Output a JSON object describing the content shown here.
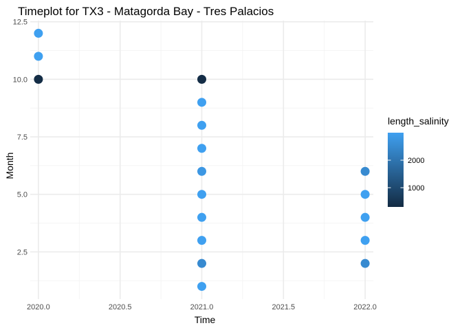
{
  "chart_data": {
    "type": "scatter",
    "title": "Timeplot for TX3 - Matagorda Bay - Tres Palacios",
    "xlabel": "Time",
    "ylabel": "Month",
    "xlim": [
      2019.95,
      2022.05
    ],
    "ylim": [
      0.45,
      12.55
    ],
    "x_ticks": [
      2020.0,
      2020.5,
      2021.0,
      2021.5,
      2022.0
    ],
    "x_tick_labels": [
      "2020.0",
      "2020.5",
      "2021.0",
      "2021.5",
      "2022.0"
    ],
    "y_ticks": [
      2.5,
      5.0,
      7.5,
      10.0,
      12.5
    ],
    "y_tick_labels": [
      "2.5",
      "5.0",
      "7.5",
      "10.0",
      "12.5"
    ],
    "grid": true,
    "legend": {
      "title": "length_salinity",
      "placement": "right",
      "range": [
        300,
        3000
      ],
      "ticks": [
        1000,
        2000
      ],
      "tick_labels": [
        "1000",
        "2000"
      ],
      "color_low": "#132B43",
      "color_high": "#3fa0f0"
    },
    "points": [
      {
        "x": 2020.0,
        "y": 12,
        "length_salinity": 3000
      },
      {
        "x": 2020.0,
        "y": 11,
        "length_salinity": 3000
      },
      {
        "x": 2020.0,
        "y": 10,
        "length_salinity": 350
      },
      {
        "x": 2021.0,
        "y": 10,
        "length_salinity": 350
      },
      {
        "x": 2021.0,
        "y": 9,
        "length_salinity": 3000
      },
      {
        "x": 2021.0,
        "y": 8,
        "length_salinity": 3000
      },
      {
        "x": 2021.0,
        "y": 7,
        "length_salinity": 3000
      },
      {
        "x": 2021.0,
        "y": 6,
        "length_salinity": 2800
      },
      {
        "x": 2021.0,
        "y": 5,
        "length_salinity": 3000
      },
      {
        "x": 2021.0,
        "y": 4,
        "length_salinity": 3000
      },
      {
        "x": 2021.0,
        "y": 3,
        "length_salinity": 3000
      },
      {
        "x": 2021.0,
        "y": 2,
        "length_salinity": 2500
      },
      {
        "x": 2021.0,
        "y": 1,
        "length_salinity": 3000
      },
      {
        "x": 2022.0,
        "y": 6,
        "length_salinity": 2500
      },
      {
        "x": 2022.0,
        "y": 5,
        "length_salinity": 3000
      },
      {
        "x": 2022.0,
        "y": 4,
        "length_salinity": 3000
      },
      {
        "x": 2022.0,
        "y": 3,
        "length_salinity": 3000
      },
      {
        "x": 2022.0,
        "y": 2,
        "length_salinity": 2500
      }
    ]
  }
}
